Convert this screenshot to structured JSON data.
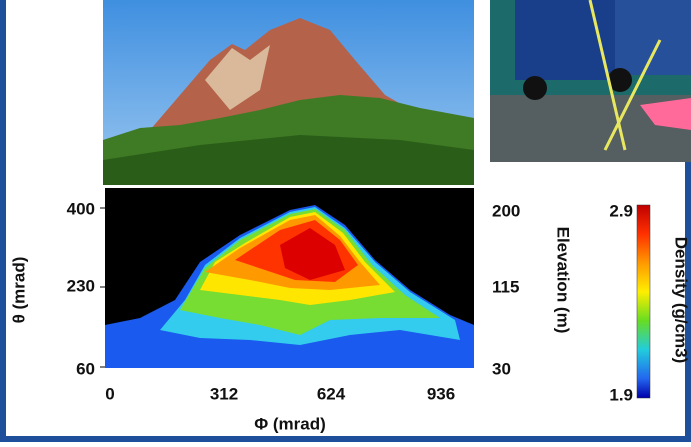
{
  "left_axis": {
    "label": "θ (mrad)",
    "ticks": [
      "400",
      "230",
      "60"
    ]
  },
  "right_axis": {
    "label": "Elevation (m)",
    "ticks": [
      "200",
      "115",
      "30"
    ]
  },
  "bottom_axis": {
    "label": "Φ (mrad)",
    "ticks": [
      "0",
      "312",
      "624",
      "936"
    ]
  },
  "colorbar": {
    "label": "Density (g/cm3)",
    "max": "2.9",
    "min": "1.9"
  }
}
